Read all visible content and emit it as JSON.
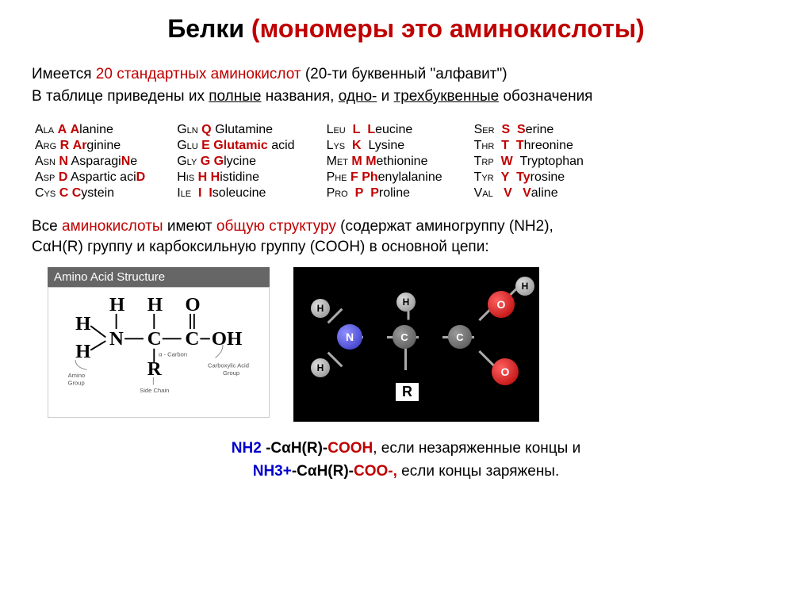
{
  "title": {
    "part1": "Белки",
    "part2": " (мономеры это ",
    "part3": "аминокислоты",
    "part4": ")"
  },
  "intro_line1": {
    "pre": "Имеется ",
    "red": "20 стандартных аминокислот",
    "post": " (20-ти буквенный \"алфавит\")"
  },
  "intro_line2": {
    "pre": "В таблице приведены их ",
    "u1": "полные",
    "mid1": " названия, ",
    "u2": "одно-",
    "mid2": " и ",
    "u3": "трехбуквенные",
    "post": " обозначения"
  },
  "amino_acids": {
    "col1": [
      {
        "three": "ALA",
        "one": "A",
        "name": "LANINE",
        "hl": "A"
      },
      {
        "three": "ARG",
        "one": "R",
        "name": "GININE",
        "hl": "AR"
      },
      {
        "three": "ASN",
        "one": "N",
        "name": "E",
        "hl": "ASPARAGI",
        "nHl": "N"
      },
      {
        "three": "ASP",
        "one": "D",
        "name": "",
        "hl": "ASPARTIC ACI",
        "nHl": "D"
      },
      {
        "three": "CYS",
        "one": "C",
        "name": "YSTEIN",
        "hl": "C"
      }
    ],
    "col2": [
      {
        "three": "GLN",
        "one": "Q",
        "name_plain": "GLUTAMINE"
      },
      {
        "three": "GLU",
        "one": "E",
        "name": " ACID",
        "hl": "GLUTAMIC"
      },
      {
        "three": "GLY",
        "one": "G",
        "name": "LYCINE",
        "hl": "G"
      },
      {
        "three": "HIS",
        "one": "H",
        "name": "ISTIDINE",
        "hl": "H"
      },
      {
        "three": "ILE",
        "one": "I",
        "name": "SOLEUCINE",
        "hl": "I",
        "spaced": true
      }
    ],
    "col3": [
      {
        "three": "LEU",
        "one": "L",
        "name": "EUCINE",
        "hl": "L",
        "spaced": true
      },
      {
        "three": "LYS",
        "one": "K",
        "name_plain": "LYSINE",
        "spaced": true
      },
      {
        "three": "MET",
        "one": "M",
        "name": "ETHIONINE",
        "hl": "M"
      },
      {
        "three": "PHE",
        "one": "F",
        "name": "ENYLALANINE",
        "hl": "PH"
      },
      {
        "three": "PRO",
        "one": "P",
        "name": "ROLINE",
        "hl": "P",
        "spaced": true
      }
    ],
    "col4": [
      {
        "three": "SER",
        "one": "S",
        "name": "ERINE",
        "hl": "S",
        "spaced": true
      },
      {
        "three": "THR",
        "one": "T",
        "name": "HREONINE",
        "hl": "T",
        "spaced": true
      },
      {
        "three": "TRP",
        "one": "W",
        "name_plain": "TRYPTOPHAN",
        "spaced": true
      },
      {
        "three": "TYR",
        "one": "Y",
        "name": "ROSINE",
        "hl": "TY",
        "spaced": true
      },
      {
        "three": "VAL",
        "one": "V",
        "name": "ALINE",
        "hl": "V",
        "spaced_more": true
      }
    ]
  },
  "structure_line1": {
    "pre": "Все ",
    "red1": "аминокислоты",
    "mid1": " имеют ",
    "red2": "общую структуру ",
    "post": "(содержат аминогруппу (NH2),"
  },
  "structure_line2": "CαH(R) группу  и карбоксильную группу (COOH) в основной цепи:",
  "diagram_left_header": "Amino Acid Structure",
  "diagram_labels": {
    "amino": "Amino\nGroup",
    "carboxylic": "Carboxylic Acid\nGroup",
    "side": "Side Chain",
    "alpha": "α - Carbon"
  },
  "molecule_atoms": {
    "H": "H",
    "N": "N",
    "C": "C",
    "O": "O",
    "R": "R"
  },
  "bottom": {
    "line1_nh2": "NH2 ",
    "line1_mid": "-CαH(R)-",
    "line1_cooh": "COOH",
    "line1_post": ", если незаряженные концы и",
    "line2_nh3": "NH3+",
    "line2_mid": "-CαH(R)-",
    "line2_coo": "COO-,",
    "line2_post": " если концы заряжены."
  },
  "colors": {
    "crimson": "#c00000",
    "blue": "#0000cc",
    "bg_black": "#000000",
    "atom_h": "#cccccc",
    "atom_n": "#4040d0",
    "atom_c": "#707070",
    "atom_o": "#d02020"
  }
}
